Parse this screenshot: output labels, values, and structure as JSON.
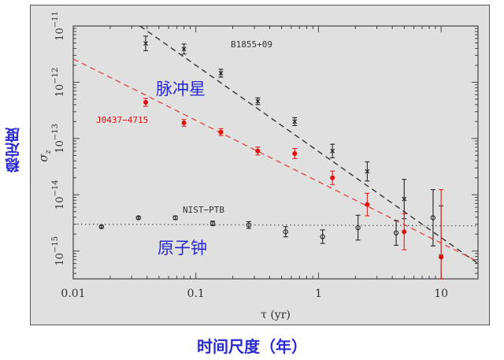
{
  "labels": {
    "y_cn": "稳定度",
    "x_cn": "时间尺度（年）",
    "pulsar_cn": "脉冲星",
    "atomic_clock_cn": "原子钟",
    "x_axis": "τ (yr)",
    "y_axis": "σz",
    "series_b1855": "B1855+09",
    "series_j0437": "J0437−4715",
    "series_nist": "NIST−PTB"
  },
  "colors": {
    "panel_bg": "#e0e0e0",
    "cn_label": "#2a2ad0",
    "pulsar_red": "#e01010",
    "fit_red": "#e05050",
    "black": "#333333"
  },
  "chart_data": {
    "type": "scatter",
    "title": "",
    "xlabel": "τ (yr)",
    "ylabel": "σz",
    "xscale": "log",
    "yscale": "log",
    "xlim": [
      0.01,
      20
    ],
    "ylim": [
      3.2e-16,
      1e-11
    ],
    "x_ticks": [
      0.01,
      0.1,
      1,
      10
    ],
    "x_tick_labels": [
      "0.01",
      "0.1",
      "1",
      "10"
    ],
    "y_ticks": [
      1e-11,
      1e-12,
      1e-13,
      1e-14,
      1e-15
    ],
    "y_tick_labels": [
      "10^-11",
      "10^-12",
      "10^-13",
      "10^-14",
      "10^-15"
    ],
    "grid": false,
    "annotations": [
      "B1855+09",
      "J0437−4715",
      "NIST−PTB",
      "脉冲星",
      "原子钟"
    ],
    "series": [
      {
        "name": "B1855+09",
        "marker": "x",
        "color": "#333333",
        "x": [
          0.039,
          0.08,
          0.16,
          0.32,
          0.64,
          1.3,
          2.5,
          5.0,
          10.0
        ],
        "y": [
          4.9e-12,
          3.9e-12,
          1.45e-12,
          4.6e-13,
          2e-13,
          6e-14,
          2.6e-14,
          8.4e-15,
          8e-16
        ],
        "fit": {
          "style": "dashed",
          "color": "#333333",
          "x": [
            0.035,
            20
          ],
          "y": [
            1e-11,
            6e-16
          ]
        }
      },
      {
        "name": "J0437−4715",
        "marker": "filled-circle",
        "color": "#e01010",
        "x": [
          0.039,
          0.08,
          0.16,
          0.32,
          0.64,
          1.3,
          2.5,
          5.0,
          10.0
        ],
        "y": [
          4.4e-13,
          1.9e-13,
          1.3e-13,
          6e-14,
          5.4e-14,
          2e-14,
          6.7e-15,
          2.2e-15,
          7.8e-16
        ],
        "fit": {
          "style": "dashed",
          "color": "#e05050",
          "x": [
            0.01,
            20
          ],
          "y": [
            2.6e-12,
            6.5e-16
          ]
        }
      },
      {
        "name": "NIST−PTB",
        "marker": "open-circle",
        "color": "#333333",
        "x": [
          0.017,
          0.034,
          0.068,
          0.137,
          0.27,
          0.54,
          1.08,
          2.1,
          4.3,
          8.6
        ],
        "y": [
          2.7e-15,
          3.9e-15,
          3.9e-15,
          3.1e-15,
          2.9e-15,
          2.2e-15,
          1.8e-15,
          2.6e-15,
          2.1e-15,
          3.9e-15
        ],
        "fit": {
          "style": "dotted",
          "color": "#666666",
          "x": [
            0.01,
            20
          ],
          "y": [
            3e-15,
            2.8e-15
          ]
        }
      }
    ]
  }
}
